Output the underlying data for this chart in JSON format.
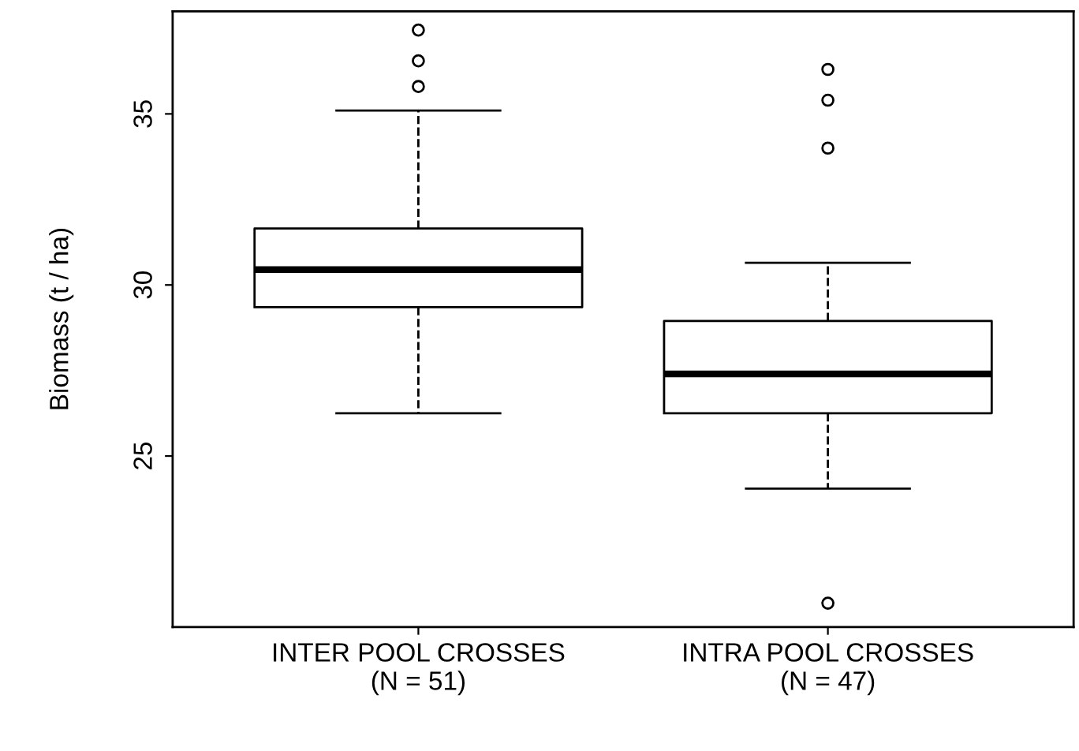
{
  "chart_data": {
    "type": "box",
    "ylabel": "Biomass (t / ha)",
    "categories": [
      "INTER POOL CROSSES\n(N = 51)",
      "INTRA POOL CROSSES\n(N = 47)"
    ],
    "boxes": [
      {
        "low": 26.25,
        "q1": 29.35,
        "median": 30.45,
        "q3": 31.65,
        "high": 35.1,
        "outliers": [
          37.45,
          36.55,
          35.8
        ]
      },
      {
        "low": 24.05,
        "q1": 26.25,
        "median": 27.4,
        "q3": 28.95,
        "high": 30.65,
        "outliers": [
          36.3,
          35.4,
          34.0,
          20.7
        ]
      }
    ],
    "ylim": [
      20.0,
      38.0
    ],
    "yticks": [
      25,
      30,
      35
    ],
    "grid": false
  }
}
